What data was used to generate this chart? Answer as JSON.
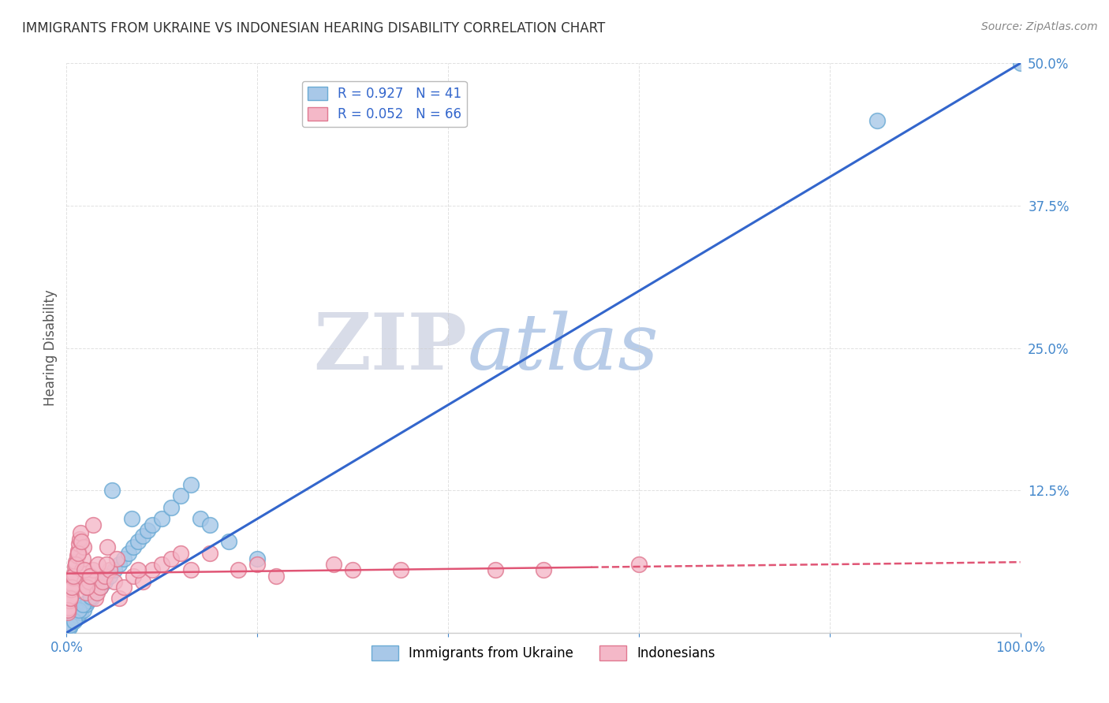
{
  "title": "IMMIGRANTS FROM UKRAINE VS INDONESIAN HEARING DISABILITY CORRELATION CHART",
  "source": "Source: ZipAtlas.com",
  "ylabel": "Hearing Disability",
  "xlim": [
    0,
    100
  ],
  "ylim": [
    0,
    50
  ],
  "yticks": [
    0,
    12.5,
    25.0,
    37.5,
    50.0
  ],
  "xticks": [
    0,
    20,
    40,
    60,
    80,
    100
  ],
  "xtick_labels": [
    "0.0%",
    "",
    "",
    "",
    "",
    "100.0%"
  ],
  "ytick_labels": [
    "",
    "12.5%",
    "25.0%",
    "37.5%",
    "50.0%"
  ],
  "legend_entries": [
    {
      "label": "Immigrants from Ukraine",
      "color": "#a8c8e8",
      "edge": "#6aaad4",
      "R": "0.927",
      "N": "41"
    },
    {
      "label": "Indonesians",
      "color": "#f4b8c8",
      "edge": "#e07890",
      "R": "0.052",
      "N": "66"
    }
  ],
  "watermark_zip": "ZIP",
  "watermark_atlas": "atlas",
  "watermark_zip_color": "#d8dce8",
  "watermark_atlas_color": "#b8cce8",
  "background_color": "#ffffff",
  "blue_line_color": "#3366cc",
  "pink_line_color": "#e05575",
  "grid_color": "#cccccc",
  "axis_label_color": "#4488cc",
  "title_color": "#333333",
  "ukraine_points_x": [
    0.3,
    0.5,
    0.7,
    1.0,
    1.2,
    1.5,
    1.8,
    2.0,
    2.3,
    2.6,
    3.0,
    3.5,
    4.0,
    4.5,
    5.0,
    5.5,
    6.0,
    6.5,
    7.0,
    7.5,
    8.0,
    8.5,
    9.0,
    10.0,
    11.0,
    12.0,
    13.0,
    14.0,
    15.0,
    17.0,
    20.0,
    0.4,
    0.8,
    1.3,
    1.7,
    2.5,
    3.2,
    4.8,
    6.8,
    85.0,
    100.0
  ],
  "ukraine_points_y": [
    0.5,
    0.8,
    1.0,
    1.2,
    1.5,
    1.8,
    2.0,
    2.5,
    2.8,
    3.0,
    3.5,
    4.0,
    4.5,
    5.0,
    5.5,
    6.0,
    6.5,
    7.0,
    7.5,
    8.0,
    8.5,
    9.0,
    9.5,
    10.0,
    11.0,
    12.0,
    13.0,
    10.0,
    9.5,
    8.0,
    6.5,
    0.7,
    1.0,
    2.0,
    2.5,
    3.2,
    3.8,
    12.5,
    10.0,
    45.0,
    50.0
  ],
  "indonesia_points_x": [
    0.1,
    0.2,
    0.3,
    0.4,
    0.5,
    0.6,
    0.7,
    0.8,
    0.9,
    1.0,
    1.1,
    1.2,
    1.3,
    1.4,
    1.5,
    1.6,
    1.7,
    1.8,
    1.9,
    2.0,
    2.2,
    2.4,
    2.6,
    2.8,
    3.0,
    3.2,
    3.5,
    3.8,
    4.0,
    4.5,
    5.0,
    5.5,
    6.0,
    7.0,
    8.0,
    9.0,
    10.0,
    11.0,
    13.0,
    15.0,
    18.0,
    22.0,
    28.0,
    35.0,
    50.0,
    0.15,
    0.35,
    0.55,
    0.75,
    0.95,
    1.25,
    1.55,
    1.85,
    2.15,
    2.45,
    3.25,
    4.25,
    5.25,
    7.5,
    12.0,
    20.0,
    30.0,
    45.0,
    60.0,
    2.8,
    4.2
  ],
  "indonesia_points_y": [
    1.8,
    2.2,
    2.8,
    3.2,
    3.8,
    4.2,
    4.8,
    5.2,
    5.8,
    6.2,
    6.8,
    7.2,
    7.8,
    8.2,
    8.8,
    5.5,
    6.5,
    7.5,
    4.5,
    3.5,
    4.0,
    4.5,
    5.0,
    5.5,
    3.0,
    3.5,
    4.0,
    4.5,
    5.0,
    5.5,
    4.5,
    3.0,
    4.0,
    5.0,
    4.5,
    5.5,
    6.0,
    6.5,
    5.5,
    7.0,
    5.5,
    5.0,
    6.0,
    5.5,
    5.5,
    2.0,
    3.0,
    4.0,
    5.0,
    6.0,
    7.0,
    8.0,
    5.5,
    4.0,
    5.0,
    6.0,
    7.5,
    6.5,
    5.5,
    7.0,
    6.0,
    5.5,
    5.5,
    6.0,
    9.5,
    6.0
  ]
}
